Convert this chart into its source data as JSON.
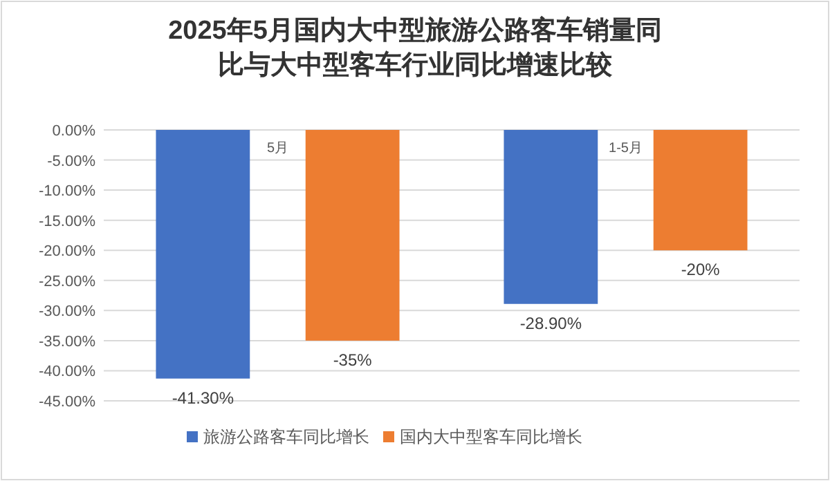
{
  "chart_data": {
    "type": "bar",
    "title": "2025年5月国内大中型旅游公路客车销量同比与大中型客车行业同比增速比较",
    "categories": [
      "5月",
      "1-5月"
    ],
    "series": [
      {
        "name": "旅游公路客车同比增长",
        "color": "#4472c4",
        "values": [
          -41.3,
          -28.9
        ],
        "value_labels": [
          "-41.30%",
          "-28.90%"
        ]
      },
      {
        "name": "国内大中型客车同比增长",
        "color": "#ed7d31",
        "values": [
          -35,
          -20
        ],
        "value_labels": [
          "-35%",
          "-20%"
        ]
      }
    ],
    "ylim": [
      -45,
      0
    ],
    "yticks": [
      {
        "value": 0,
        "label": "0.00%"
      },
      {
        "value": -5,
        "label": "-5.00%"
      },
      {
        "value": -10,
        "label": "-10.00%"
      },
      {
        "value": -15,
        "label": "-15.00%"
      },
      {
        "value": -20,
        "label": "-20.00%"
      },
      {
        "value": -25,
        "label": "-25.00%"
      },
      {
        "value": -30,
        "label": "-30.00%"
      },
      {
        "value": -35,
        "label": "-35.00%"
      },
      {
        "value": -40,
        "label": "-40.00%"
      },
      {
        "value": -45,
        "label": "-45.00%"
      }
    ],
    "grid": "y",
    "legend": "bottom"
  }
}
